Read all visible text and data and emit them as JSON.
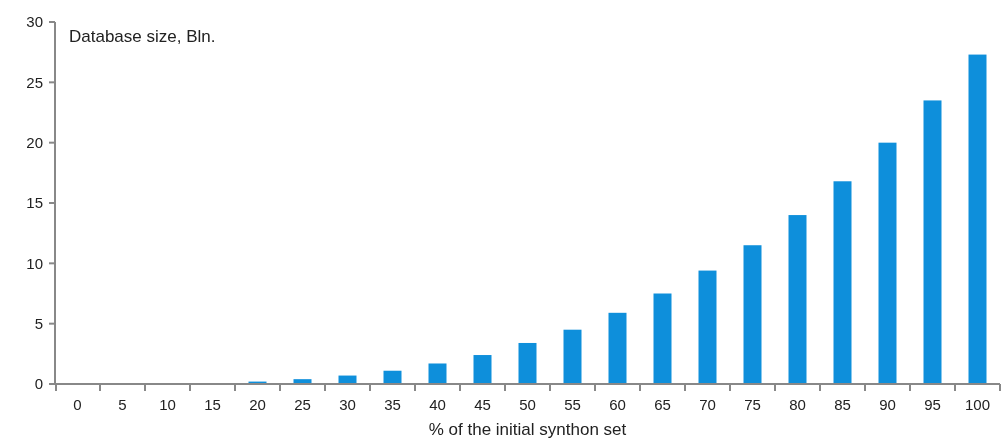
{
  "chart_data": {
    "type": "bar",
    "ylabel": "Database size, Bln.",
    "xlabel": "% of the initial synthon set",
    "categories": [
      "0",
      "5",
      "10",
      "15",
      "20",
      "25",
      "30",
      "35",
      "40",
      "45",
      "50",
      "55",
      "60",
      "65",
      "70",
      "75",
      "80",
      "85",
      "90",
      "95",
      "100"
    ],
    "values": [
      0,
      0,
      0,
      0,
      0.2,
      0.4,
      0.7,
      1.1,
      1.7,
      2.4,
      3.4,
      4.5,
      5.9,
      7.5,
      9.4,
      11.5,
      14.0,
      16.8,
      20.0,
      23.5,
      27.3
    ],
    "color": "#0e8fdb",
    "ylim": [
      0,
      30
    ],
    "yticks": [
      0,
      5,
      10,
      15,
      20,
      25,
      30
    ],
    "grid": false
  }
}
